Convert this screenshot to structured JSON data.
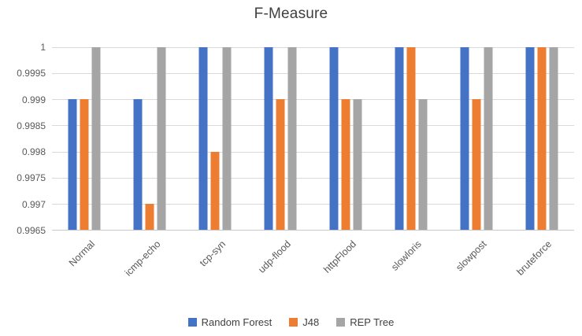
{
  "chart_data": {
    "type": "bar",
    "title": "F-Measure",
    "categories": [
      "Normal",
      "icmp-echo",
      "tcp-syn",
      "udp-flood",
      "httpFlood",
      "slowloris",
      "slowpost",
      "bruteforce"
    ],
    "series": [
      {
        "name": "Random Forest",
        "color": "#4472C4",
        "values": [
          0.999,
          0.999,
          1,
          1,
          1,
          1,
          1,
          1
        ]
      },
      {
        "name": "J48",
        "color": "#ED7D31",
        "values": [
          0.999,
          0.997,
          0.998,
          0.999,
          0.999,
          1,
          0.999,
          1
        ]
      },
      {
        "name": "REP Tree",
        "color": "#A5A5A5",
        "values": [
          1,
          1,
          1,
          1,
          0.999,
          0.999,
          1,
          1
        ]
      }
    ],
    "ylim": [
      0.9965,
      1
    ],
    "yticks": [
      0.9965,
      0.997,
      0.9975,
      0.998,
      0.9985,
      0.999,
      0.9995,
      1
    ],
    "ytick_labels": [
      "0.9965",
      "0.997",
      "0.9975",
      "0.998",
      "0.9985",
      "0.999",
      "0.9995",
      "1"
    ],
    "xlabel": "",
    "ylabel": "",
    "grid": true,
    "legend_position": "bottom"
  }
}
